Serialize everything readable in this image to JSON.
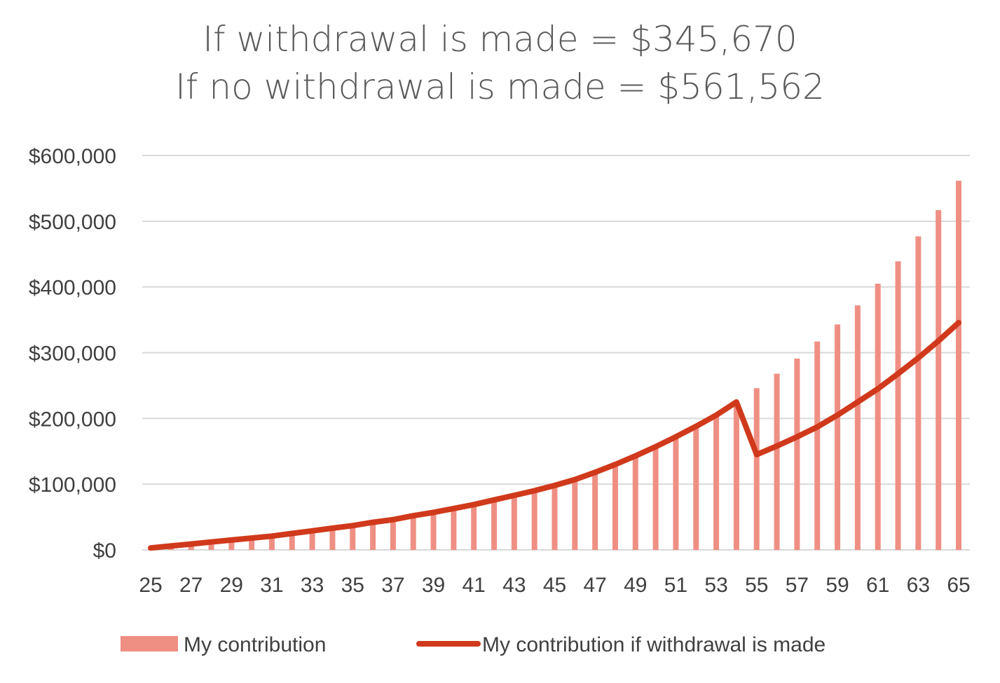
{
  "chart_data": {
    "type": "bar",
    "title": [
      "If withdrawal is made = $345,670",
      "If no withdrawal is made = $561,562"
    ],
    "x": [
      25,
      26,
      27,
      28,
      29,
      30,
      31,
      32,
      33,
      34,
      35,
      36,
      37,
      38,
      39,
      40,
      41,
      42,
      43,
      44,
      45,
      46,
      47,
      48,
      49,
      50,
      51,
      52,
      53,
      54,
      55,
      56,
      57,
      58,
      59,
      60,
      61,
      62,
      63,
      64,
      65
    ],
    "x_tick_labels": [
      "25",
      "27",
      "29",
      "31",
      "33",
      "35",
      "37",
      "39",
      "41",
      "43",
      "45",
      "47",
      "49",
      "51",
      "53",
      "55",
      "57",
      "59",
      "61",
      "63",
      "65"
    ],
    "y_tick_labels": [
      "$0",
      "$100,000",
      "$200,000",
      "$300,000",
      "$400,000",
      "$500,000",
      "$600,000"
    ],
    "ylim": [
      0,
      600000
    ],
    "grid": true,
    "legend_position": "bottom",
    "series": [
      {
        "name": "My contribution",
        "type": "bar",
        "color": "#ef8f84",
        "values": [
          3000,
          6000,
          9000,
          12000,
          15000,
          18000,
          21000,
          25000,
          29000,
          33000,
          37000,
          42000,
          46000,
          52000,
          57000,
          63000,
          69000,
          76000,
          83000,
          90000,
          98000,
          107000,
          118000,
          130000,
          143000,
          157000,
          172000,
          188000,
          205000,
          225000,
          246000,
          268000,
          291000,
          317000,
          343000,
          372000,
          405000,
          439000,
          477000,
          517000,
          561562
        ]
      },
      {
        "name": "My contribution if withdrawal is made",
        "type": "line",
        "color": "#d0391b",
        "values": [
          3000,
          6000,
          9000,
          12000,
          15000,
          18000,
          21000,
          25000,
          29000,
          33000,
          37000,
          42000,
          46000,
          52000,
          57000,
          63000,
          69000,
          76000,
          83000,
          90000,
          98000,
          107000,
          118000,
          130000,
          143000,
          157000,
          172000,
          188000,
          205000,
          225000,
          145000,
          158000,
          172000,
          187000,
          205000,
          225000,
          245000,
          268000,
          292000,
          318000,
          345670
        ]
      }
    ]
  }
}
